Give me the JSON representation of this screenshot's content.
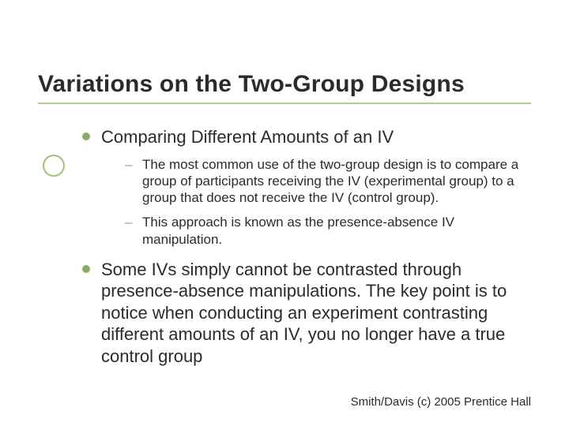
{
  "styling": {
    "background_color": "#ffffff",
    "title_color": "#2b2b2b",
    "title_fontsize": 30,
    "body_color": "#2b2b2b",
    "level1_fontsize": 22,
    "level2_fontsize": 17,
    "bullet_color": "#8dab65",
    "rule_color": "#b0cd8e",
    "accent_circle_color": "#9fbf79",
    "footer_fontsize": 15
  },
  "slide": {
    "title": "Variations on the Two-Group Designs",
    "bullets": [
      {
        "text": "Comparing Different Amounts of an IV",
        "sub": [
          "The most common use of the two-group design is to compare a group of participants receiving the IV (experimental group) to a group that does not receive the IV (control group).",
          "This approach is known as the presence-absence IV manipulation."
        ]
      },
      {
        "text": "Some IVs simply cannot be contrasted through presence-absence manipulations. The key point is to notice when conducting an experiment contrasting different amounts of an IV, you no longer have a true control group",
        "sub": []
      }
    ],
    "footer": "Smith/Davis (c) 2005 Prentice Hall"
  }
}
